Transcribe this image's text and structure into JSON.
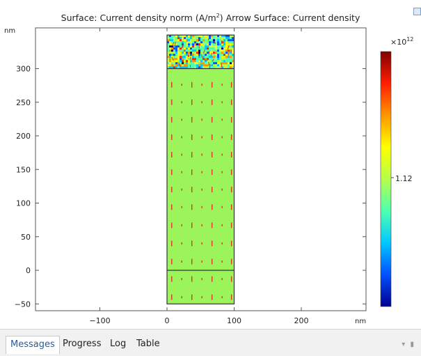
{
  "plot": {
    "title_part1": "Surface: Current density norm (A/m",
    "title_sup": "2",
    "title_part2": ")  Arrow Surface: Current density",
    "y_unit": "nm",
    "x_unit": "nm",
    "x_ticks": [
      -100,
      0,
      100,
      200
    ],
    "y_ticks": [
      -50,
      0,
      50,
      100,
      150,
      200,
      250,
      300
    ],
    "x_range": [
      -195,
      300
    ],
    "y_range": [
      -55,
      355
    ],
    "domain": {
      "x": [
        0,
        100
      ],
      "y": [
        -50,
        350
      ],
      "interfaces_y": [
        0,
        300
      ],
      "bulk_color": "#9bf55a",
      "arrow_color": "#d9381e",
      "arrow_rows_y": [
        -40,
        -13,
        13,
        40,
        67,
        94,
        120,
        146,
        172,
        198,
        224,
        250,
        276
      ],
      "arrow_cols_x": [
        7,
        22,
        37,
        52,
        67,
        82,
        96
      ]
    }
  },
  "colorbar": {
    "exponent_base": "×10",
    "exponent_power": "12",
    "tick_label": "1.12",
    "colors": [
      "#00008f",
      "#0050ff",
      "#00c8ff",
      "#50ffaf",
      "#b4ff4a",
      "#ffff00",
      "#ff9600",
      "#ff1e00",
      "#800000"
    ]
  },
  "tabs": [
    {
      "label": "Messages",
      "active": true
    },
    {
      "label": "Progress",
      "active": false
    },
    {
      "label": "Log",
      "active": false
    },
    {
      "label": "Table",
      "active": false
    }
  ],
  "panel_controls": "▾ ▮"
}
